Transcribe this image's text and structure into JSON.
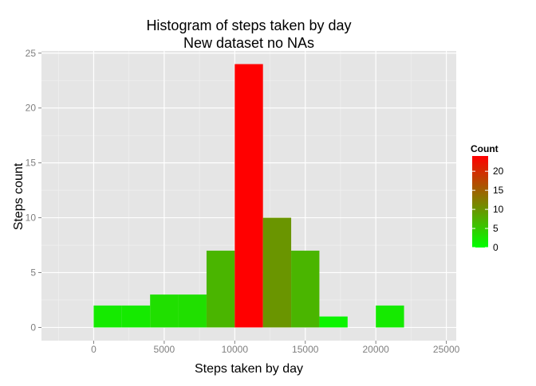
{
  "chart_data": {
    "type": "bar",
    "title": "Histogram of steps taken by day",
    "subtitle": "New dataset no NAs",
    "xlabel": "Steps taken by day",
    "ylabel": "Steps count",
    "xlim": [
      -3700,
      25700
    ],
    "ylim": [
      -1.2,
      25.2
    ],
    "x_ticks": [
      0,
      5000,
      10000,
      15000,
      20000,
      25000
    ],
    "x_tick_labels": [
      "0",
      "5000",
      "10000",
      "15000",
      "20000",
      "25000"
    ],
    "y_ticks": [
      0,
      5,
      10,
      15,
      20,
      25
    ],
    "y_tick_labels": [
      "0",
      "5",
      "10",
      "15",
      "20",
      "25"
    ],
    "bin_width": 2000,
    "bins": [
      {
        "x0": 0,
        "x1": 2000,
        "count": 2
      },
      {
        "x0": 2000,
        "x1": 4000,
        "count": 2
      },
      {
        "x0": 4000,
        "x1": 6000,
        "count": 3
      },
      {
        "x0": 6000,
        "x1": 8000,
        "count": 3
      },
      {
        "x0": 8000,
        "x1": 10000,
        "count": 7
      },
      {
        "x0": 10000,
        "x1": 12000,
        "count": 24
      },
      {
        "x0": 12000,
        "x1": 14000,
        "count": 10
      },
      {
        "x0": 14000,
        "x1": 16000,
        "count": 7
      },
      {
        "x0": 16000,
        "x1": 18000,
        "count": 1
      },
      {
        "x0": 18000,
        "x1": 20000,
        "count": 0
      },
      {
        "x0": 20000,
        "x1": 22000,
        "count": 2
      }
    ],
    "fill_scale": {
      "low": "#00ff00",
      "high": "#ff0000",
      "min": 0,
      "max": 24
    },
    "legend": {
      "title": "Count",
      "position": "right",
      "breaks": [
        0,
        5,
        10,
        15,
        20
      ],
      "break_labels": [
        "0",
        "5",
        "10",
        "15",
        "20"
      ]
    },
    "grid": true,
    "panel_background": "#e5e5e5",
    "grid_color": "#ffffff"
  }
}
